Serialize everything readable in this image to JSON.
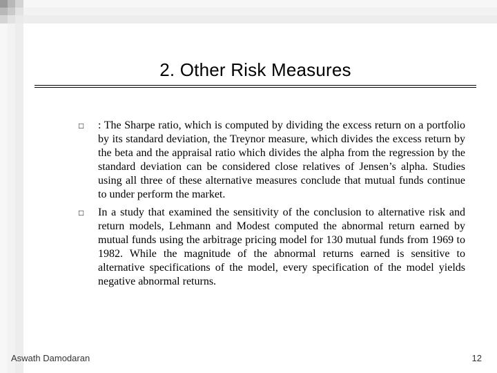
{
  "title": "2. Other Risk Measures",
  "bullets": [
    {
      "marker": "□",
      "text": ": The Sharpe ratio, which is computed by dividing the excess return on a portfolio by its standard deviation, the Treynor measure, which divides the excess return by the beta and the appraisal ratio which divides the alpha from the regression by the standard deviation can be considered close relatives of Jensen’s alpha. Studies using all three of these alternative measures conclude that mutual funds continue to under perform the market."
    },
    {
      "marker": "□",
      "text": "In a study that examined the sensitivity of the conclusion to alternative risk and return models, Lehmann and Modest computed the abnormal return earned by mutual funds using the arbitrage pricing model for 130 mutual funds from 1969 to 1982. While the magnitude of the abnormal returns earned is sensitive to alternative specifications of the model, every specification of the model yields negative abnormal returns."
    }
  ],
  "footer": {
    "author": "Aswath Damodaran",
    "page": "12"
  },
  "colors": {
    "bg": "#ffffff",
    "text": "#000000",
    "footer": "#333333"
  }
}
